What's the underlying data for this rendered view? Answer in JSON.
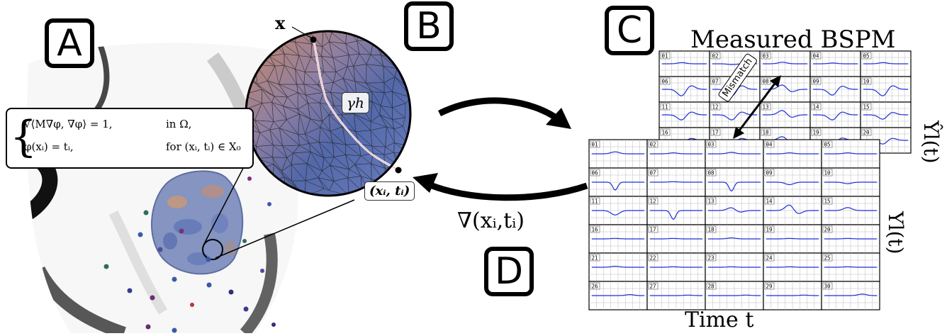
{
  "panels": {
    "a": "A",
    "b": "B",
    "c": "C",
    "d": "D"
  },
  "equation": {
    "line1_lhs": "√⟨M∇φ, ∇φ⟩ = 1,",
    "line1_cond": "in Ω,",
    "line2_lhs": "φ(xᵢ) = tᵢ,",
    "line2_cond": "for (xᵢ, tᵢ) ∈ X₀"
  },
  "zoom_labels": {
    "x": "x",
    "gamma": "γh",
    "xi_ti": "(xᵢ, tᵢ)"
  },
  "measured_title": "Measured BSPM",
  "simulated_label": "Yl(t)",
  "measured_label": "Ŷl(t)",
  "mismatch_label": "Mismatch",
  "gradient_label": "∇(xᵢ,tᵢ)",
  "time_label": "Time t",
  "back_grid_numbers": [
    "01",
    "02",
    "03",
    "04",
    "05",
    "06",
    "07",
    "08",
    "09",
    "10",
    "11",
    "12",
    "13",
    "14",
    "15",
    "16",
    "17",
    "18",
    "19",
    "20"
  ],
  "front_grid_numbers": [
    "01",
    "02",
    "03",
    "04",
    "05",
    "06",
    "07",
    "08",
    "09",
    "10",
    "11",
    "12",
    "13",
    "14",
    "15",
    "16",
    "17",
    "18",
    "19",
    "20",
    "21",
    "22",
    "23",
    "24",
    "25",
    "26",
    "27",
    "28",
    "29",
    "30"
  ],
  "colors": {
    "trace": "#1f2fd6",
    "tissue": "#7d8fbf",
    "mesh_blue": "#4d64a8",
    "mesh_orange": "#c47f5e",
    "path": "#ffffff"
  }
}
